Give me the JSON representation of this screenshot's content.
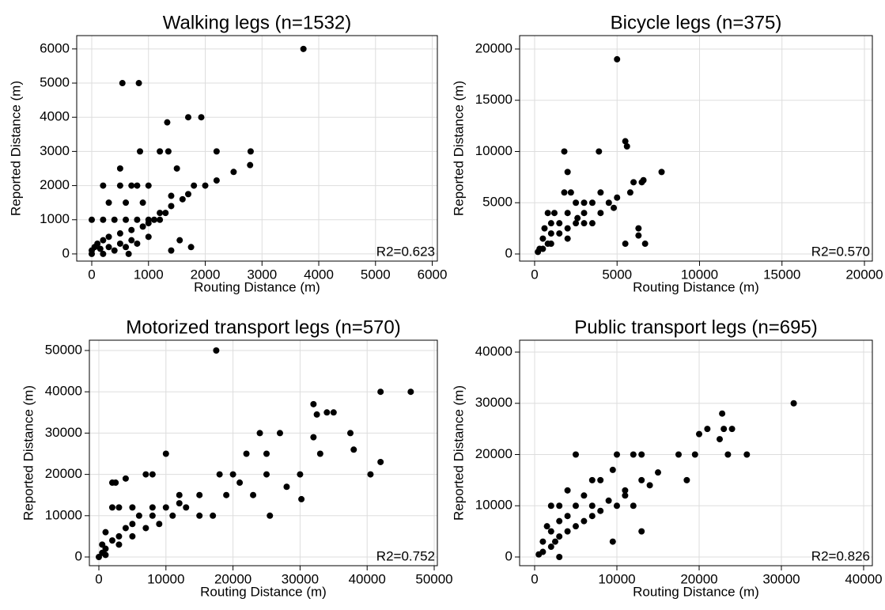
{
  "chart_data": [
    {
      "type": "scatter",
      "title": "Walking legs (n=1532)",
      "x_label": "Routing Distance (m)",
      "y_label": "Reported Distance (m)",
      "annotation": "R2=0.623",
      "color": "#000000",
      "grid": true,
      "xlim": [
        -265,
        6090
      ],
      "ylim": [
        -210,
        6390
      ],
      "xticks": [
        0,
        1000,
        2000,
        3000,
        4000,
        5000,
        6000
      ],
      "yticks": [
        0,
        1000,
        2000,
        3000,
        4000,
        5000,
        6000
      ],
      "x": [
        3730,
        540,
        830,
        1700,
        1930,
        1330,
        850,
        1200,
        1350,
        2200,
        2800,
        2790,
        2500,
        2200,
        500,
        1500,
        200,
        500,
        700,
        800,
        1000,
        1800,
        2000,
        1700,
        1600,
        1400,
        1300,
        1200,
        300,
        600,
        900,
        1100,
        1000,
        800,
        600,
        400,
        200,
        0,
        1000,
        900,
        700,
        500,
        300,
        200,
        100,
        50,
        0,
        0,
        200,
        400,
        600,
        800,
        1000,
        700,
        500,
        300,
        150,
        1400,
        1750,
        1550,
        650,
        1400,
        1200
      ],
      "y": [
        6000,
        5000,
        5000,
        4000,
        4000,
        3850,
        3000,
        3000,
        3000,
        3000,
        3000,
        2600,
        2400,
        2150,
        2500,
        2500,
        2000,
        2000,
        2000,
        2000,
        2000,
        2000,
        2000,
        1750,
        1600,
        1400,
        1200,
        1200,
        1500,
        1500,
        1500,
        1000,
        1000,
        1000,
        1000,
        1000,
        1000,
        1000,
        900,
        800,
        700,
        600,
        500,
        400,
        300,
        200,
        100,
        0,
        0,
        100,
        200,
        300,
        500,
        400,
        300,
        200,
        150,
        100,
        200,
        400,
        0,
        1700,
        1000
      ]
    },
    {
      "type": "scatter",
      "title": "Bicycle legs (n=375)",
      "x_label": "Routing Distance (m)",
      "y_label": "Reported Distance (m)",
      "annotation": "R2=0.570",
      "color": "#000000",
      "grid": true,
      "xlim": [
        -910,
        20480
      ],
      "ylim": [
        -695,
        21310
      ],
      "xticks": [
        0,
        5000,
        10000,
        15000,
        20000
      ],
      "yticks": [
        0,
        5000,
        10000,
        15000,
        20000
      ],
      "x": [
        5000,
        5500,
        5600,
        1800,
        3900,
        2000,
        7700,
        6000,
        6500,
        6600,
        5800,
        1800,
        2200,
        4000,
        800,
        1200,
        3000,
        2500,
        3500,
        4500,
        5000,
        4800,
        3000,
        2000,
        1500,
        2500,
        3000,
        1000,
        1500,
        2000,
        500,
        800,
        500,
        200,
        300,
        1000,
        2000,
        2600,
        3500,
        4000,
        5500,
        6300,
        6300,
        6700,
        1000,
        600
      ],
      "y": [
        19000,
        11000,
        10500,
        10000,
        10000,
        8000,
        8000,
        7000,
        7000,
        7200,
        6000,
        6000,
        6000,
        6000,
        4000,
        4000,
        5000,
        5000,
        5000,
        5000,
        5500,
        4500,
        4000,
        4000,
        3000,
        3000,
        3000,
        2000,
        2000,
        2500,
        1500,
        1000,
        500,
        200,
        500,
        1000,
        1500,
        3500,
        3000,
        4000,
        1000,
        2500,
        1800,
        1000,
        3000,
        2500
      ]
    },
    {
      "type": "scatter",
      "title": "Motorized transport legs (n=570)",
      "x_label": "Routing Distance (m)",
      "y_label": "Reported Distance (m)",
      "annotation": "R2=0.752",
      "color": "#000000",
      "grid": true,
      "xlim": [
        -1415,
        50470
      ],
      "ylim": [
        -2107,
        52490
      ],
      "xticks": [
        0,
        10000,
        20000,
        30000,
        40000,
        50000
      ],
      "yticks": [
        0,
        10000,
        20000,
        30000,
        40000,
        50000
      ],
      "x": [
        17500,
        42000,
        46500,
        32000,
        34000,
        35000,
        32500,
        37500,
        38000,
        42000,
        40500,
        30000,
        30200,
        33000,
        32000,
        24000,
        27000,
        25000,
        22000,
        20000,
        18000,
        25000,
        23000,
        25500,
        28000,
        10000,
        7000,
        8000,
        12000,
        15000,
        2000,
        2500,
        4000,
        2000,
        3000,
        5000,
        8000,
        10000,
        12000,
        6000,
        8000,
        5000,
        4000,
        3000,
        2000,
        1000,
        500,
        0,
        1000,
        3000,
        5000,
        7000,
        9000,
        11000,
        13000,
        15000,
        17000,
        19000,
        21000,
        1000,
        500
      ],
      "y": [
        50000,
        40000,
        40000,
        37000,
        35000,
        35000,
        34500,
        30000,
        26000,
        23000,
        20000,
        20000,
        14000,
        25000,
        29000,
        30000,
        30000,
        25000,
        25000,
        20000,
        20000,
        20000,
        15000,
        10000,
        17000,
        25000,
        20000,
        20000,
        15000,
        15000,
        18000,
        18000,
        19000,
        12000,
        12000,
        12000,
        12000,
        12000,
        13000,
        10000,
        10000,
        8000,
        7000,
        5000,
        4000,
        2000,
        1000,
        0,
        500,
        3000,
        5000,
        7000,
        8000,
        10000,
        12000,
        10000,
        10000,
        15000,
        18000,
        6000,
        3000
      ]
    },
    {
      "type": "scatter",
      "title": "Public transport legs (n=695)",
      "x_label": "Routing Distance (m)",
      "y_label": "Reported Distance (m)",
      "annotation": "R2=0.826",
      "color": "#000000",
      "grid": true,
      "xlim": [
        -1827,
        41060
      ],
      "ylim": [
        -1700,
        42320
      ],
      "xticks": [
        0,
        10000,
        20000,
        30000,
        40000
      ],
      "yticks": [
        0,
        10000,
        20000,
        30000,
        40000
      ],
      "x": [
        31500,
        22800,
        23000,
        24000,
        21000,
        20000,
        22500,
        23500,
        25800,
        19500,
        17500,
        18500,
        15000,
        13000,
        12000,
        10000,
        5000,
        9500,
        8000,
        13000,
        11000,
        10000,
        12000,
        7000,
        5000,
        2000,
        3000,
        4000,
        6000,
        9500,
        13000,
        3000,
        1000,
        2000,
        3000,
        4000,
        5000,
        6000,
        7000,
        8000,
        1000,
        500,
        2000,
        3000,
        4000,
        1500,
        2500,
        9000,
        11000,
        14000,
        7000
      ],
      "y": [
        30000,
        28000,
        25000,
        25000,
        25000,
        24000,
        23000,
        20000,
        20000,
        20000,
        20000,
        15000,
        16500,
        20000,
        20000,
        20000,
        20000,
        17000,
        15000,
        15000,
        13000,
        10000,
        10000,
        10000,
        10000,
        10000,
        10000,
        13000,
        12000,
        3000,
        5000,
        0,
        3000,
        5000,
        7000,
        8000,
        6000,
        7000,
        8000,
        9000,
        1000,
        500,
        2000,
        4000,
        5000,
        6000,
        3000,
        11000,
        12000,
        14000,
        15000
      ]
    }
  ]
}
